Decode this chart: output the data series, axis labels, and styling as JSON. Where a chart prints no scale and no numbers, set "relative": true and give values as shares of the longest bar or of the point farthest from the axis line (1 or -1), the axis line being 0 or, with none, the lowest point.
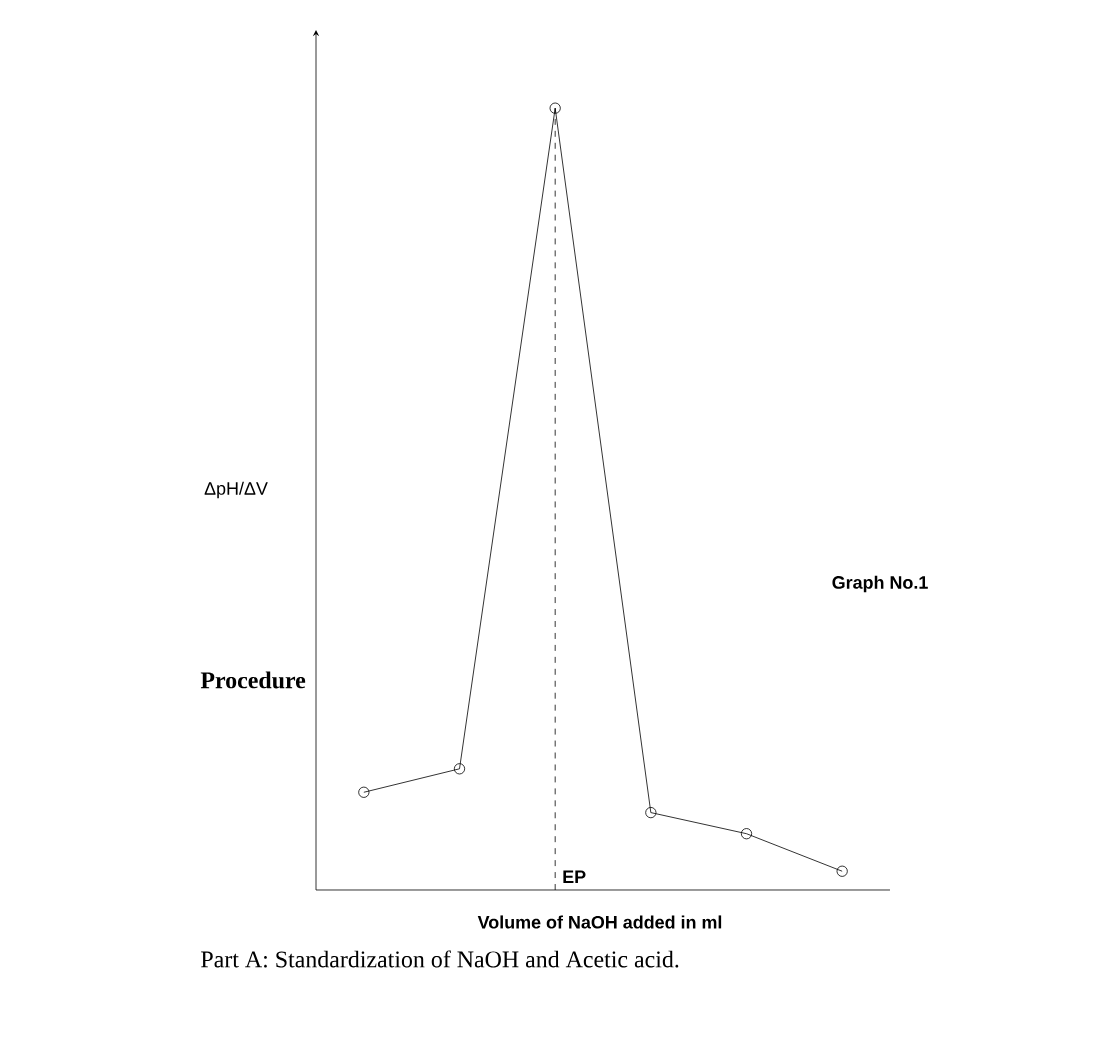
{
  "chart_data": {
    "type": "line",
    "relative": true,
    "xlabel": "Volume of NaOH added in ml",
    "ylabel": "ΔpH/ΔV",
    "categories": [
      null,
      null,
      null,
      null,
      null,
      null
    ],
    "series": [
      {
        "color": "#000000",
        "values": [
          0.125,
          0.155,
          1,
          0.099,
          0.072,
          0.024
        ]
      }
    ],
    "marker": "circle",
    "line_style": "solid",
    "annotations": [
      "EP",
      "Graph No.1",
      "Procedure",
      "Part A: Standardization of NaOH and Acetic acid."
    ]
  }
}
